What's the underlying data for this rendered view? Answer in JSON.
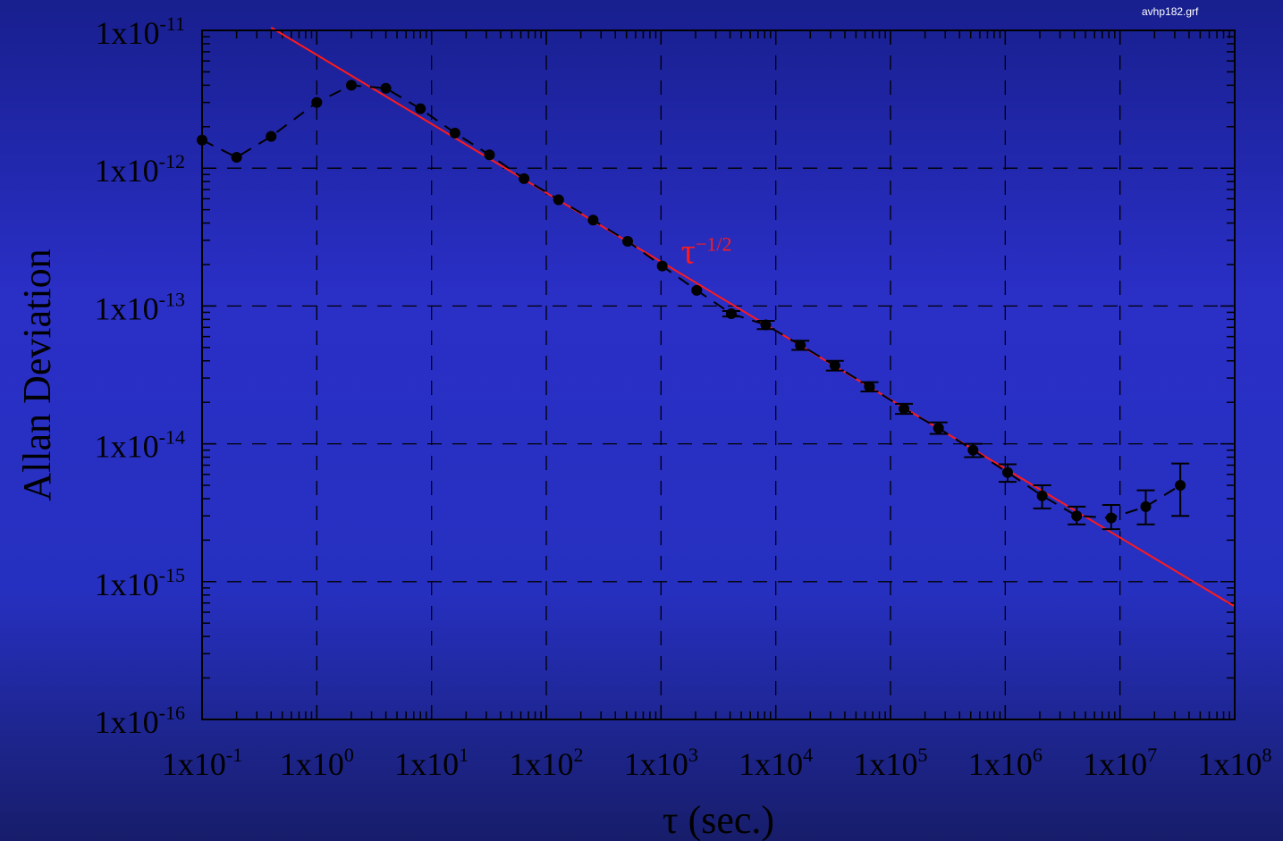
{
  "file_label": "avhp182.grf",
  "chart_data": {
    "type": "scatter",
    "xlabel": "τ (sec.)",
    "ylabel": "Allan Deviation",
    "x_scale": "log",
    "y_scale": "log",
    "xlim": [
      0.1,
      100000000
    ],
    "ylim": [
      1e-16,
      1e-11
    ],
    "grid": true,
    "x_ticks": [
      {
        "value": 0.1,
        "base": "1x10",
        "exp": "-1"
      },
      {
        "value": 1,
        "base": "1x10",
        "exp": "0"
      },
      {
        "value": 10,
        "base": "1x10",
        "exp": "1"
      },
      {
        "value": 100,
        "base": "1x10",
        "exp": "2"
      },
      {
        "value": 1000,
        "base": "1x10",
        "exp": "3"
      },
      {
        "value": 10000,
        "base": "1x10",
        "exp": "4"
      },
      {
        "value": 100000,
        "base": "1x10",
        "exp": "5"
      },
      {
        "value": 1000000,
        "base": "1x10",
        "exp": "6"
      },
      {
        "value": 10000000,
        "base": "1x10",
        "exp": "7"
      },
      {
        "value": 100000000,
        "base": "1x10",
        "exp": "8"
      }
    ],
    "y_ticks": [
      {
        "value": 1e-16,
        "base": "1x10",
        "exp": "-16"
      },
      {
        "value": 1e-15,
        "base": "1x10",
        "exp": "-15"
      },
      {
        "value": 1e-14,
        "base": "1x10",
        "exp": "-14"
      },
      {
        "value": 1e-13,
        "base": "1x10",
        "exp": "-13"
      },
      {
        "value": 1e-12,
        "base": "1x10",
        "exp": "-12"
      },
      {
        "value": 1e-11,
        "base": "1x10",
        "exp": "-11"
      }
    ],
    "series": [
      {
        "color": "#000000",
        "line_style": "dashed",
        "marker": "filled-circle",
        "points": [
          {
            "x": 0.1,
            "y": 1.6e-12
          },
          {
            "x": 0.2,
            "y": 1.2e-12
          },
          {
            "x": 0.4,
            "y": 1.7e-12
          },
          {
            "x": 1,
            "y": 3e-12
          },
          {
            "x": 2,
            "y": 4e-12
          },
          {
            "x": 4,
            "y": 3.8e-12
          },
          {
            "x": 8,
            "y": 2.7e-12
          },
          {
            "x": 16,
            "y": 1.8e-12
          },
          {
            "x": 32,
            "y": 1.25e-12
          },
          {
            "x": 64,
            "y": 8.4e-13
          },
          {
            "x": 128,
            "y": 5.9e-13
          },
          {
            "x": 256,
            "y": 4.2e-13
          },
          {
            "x": 512,
            "y": 2.95e-13
          },
          {
            "x": 1024,
            "y": 1.95e-13
          },
          {
            "x": 2048,
            "y": 1.3e-13
          },
          {
            "x": 4096,
            "y": 8.8e-14,
            "err": [
              8.4e-14,
              9.2e-14
            ]
          },
          {
            "x": 8192,
            "y": 7.3e-14,
            "err": [
              6.8e-14,
              7.8e-14
            ]
          },
          {
            "x": 16384,
            "y": 5.2e-14,
            "err": [
              4.8e-14,
              5.6e-14
            ]
          },
          {
            "x": 32768,
            "y": 3.7e-14,
            "err": [
              3.4e-14,
              4e-14
            ]
          },
          {
            "x": 65536,
            "y": 2.6e-14,
            "err": [
              2.4e-14,
              2.8e-14
            ]
          },
          {
            "x": 131072,
            "y": 1.8e-14,
            "err": [
              1.65e-14,
              1.95e-14
            ]
          },
          {
            "x": 262144,
            "y": 1.3e-14,
            "err": [
              1.18e-14,
              1.43e-14
            ]
          },
          {
            "x": 524288,
            "y": 9e-15,
            "err": [
              8e-15,
              1e-14
            ]
          },
          {
            "x": 1048576,
            "y": 6.2e-15,
            "err": [
              5.3e-15,
              7.1e-15
            ]
          },
          {
            "x": 2097152,
            "y": 4.2e-15,
            "err": [
              3.4e-15,
              5e-15
            ]
          },
          {
            "x": 4194304,
            "y": 3e-15,
            "err": [
              2.6e-15,
              3.5e-15
            ]
          },
          {
            "x": 8388608,
            "y": 2.9e-15,
            "err": [
              2.4e-15,
              3.6e-15
            ]
          },
          {
            "x": 16777216,
            "y": 3.5e-15,
            "err": [
              2.6e-15,
              4.6e-15
            ]
          },
          {
            "x": 33554432,
            "y": 5e-15,
            "err": [
              3e-15,
              7.2e-15
            ]
          }
        ]
      }
    ],
    "fit_line": {
      "label_base": "τ",
      "label_exp": "−1/2",
      "color": "#ff1a1a",
      "slope": -0.5,
      "from": {
        "x": 0.4,
        "y": 1.05e-11
      },
      "to": {
        "x": 100000000,
        "y": 6.6e-16
      },
      "label_at": {
        "x": 1500,
        "y": 2.3e-13
      }
    }
  }
}
